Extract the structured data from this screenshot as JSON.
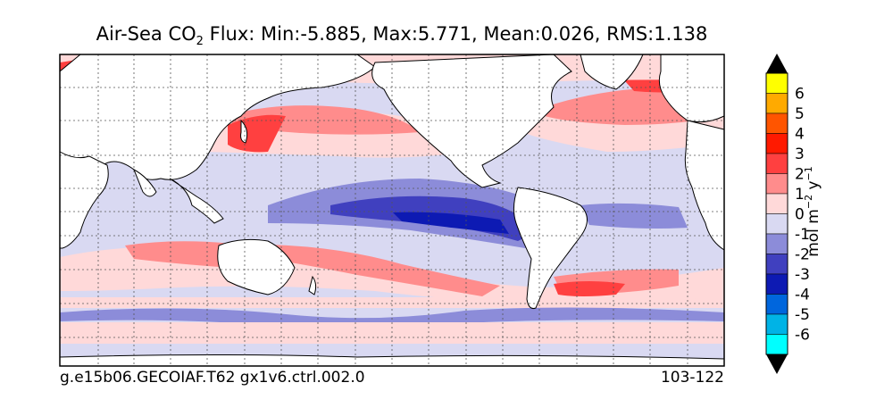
{
  "title": {
    "prefix": "Air-Sea CO",
    "subscript": "2",
    "suffix": " Flux: Min:-5.885, Max:5.771, Mean:0.026, RMS:1.138"
  },
  "footer": {
    "run_name": "g.e15b06.GECOIAF.T62 gx1v6.ctrl.002.0",
    "years": "103-122"
  },
  "colorbar": {
    "units": {
      "base": "mol m",
      "exp1": "−2",
      "mid": " y",
      "exp2": "−1"
    },
    "tick_labels": [
      "6",
      "5",
      "4",
      "3",
      "2",
      "1",
      "0",
      "-1",
      "-2",
      "-3",
      "-4",
      "-5",
      "-6"
    ],
    "levels_top_to_bottom": [
      {
        "range": "6 to 7",
        "color": "#ffff00"
      },
      {
        "range": "5 to 6",
        "color": "#ffaa00"
      },
      {
        "range": "4 to 5",
        "color": "#ff5500"
      },
      {
        "range": "3 to 4",
        "color": "#ff1a00"
      },
      {
        "range": "2 to 3",
        "color": "#ff4040"
      },
      {
        "range": "1 to 2",
        "color": "#ff8c8c"
      },
      {
        "range": "0 to 1",
        "color": "#ffd9d9"
      },
      {
        "range": "-1 to 0",
        "color": "#d9d9f2"
      },
      {
        "range": "-2 to -1",
        "color": "#8c8cd9"
      },
      {
        "range": "-3 to -2",
        "color": "#4040bf"
      },
      {
        "range": "-4 to -3",
        "color": "#0d1ab3"
      },
      {
        "range": "-5 to -4",
        "color": "#0066dd"
      },
      {
        "range": "-6 to -5",
        "color": "#00b3e6"
      },
      {
        "range": "-7 to -6",
        "color": "#00ffff"
      }
    ],
    "over_color": "#000000",
    "under_color": "#000000"
  },
  "map": {
    "projection": "cylindrical equidistant",
    "lon_range": [
      20,
      380
    ],
    "lat_range": [
      -80,
      90
    ],
    "gridlines": "dotted, every 20 degrees",
    "land_color": "#ffffff",
    "background_color": "#d9d9f2"
  }
}
